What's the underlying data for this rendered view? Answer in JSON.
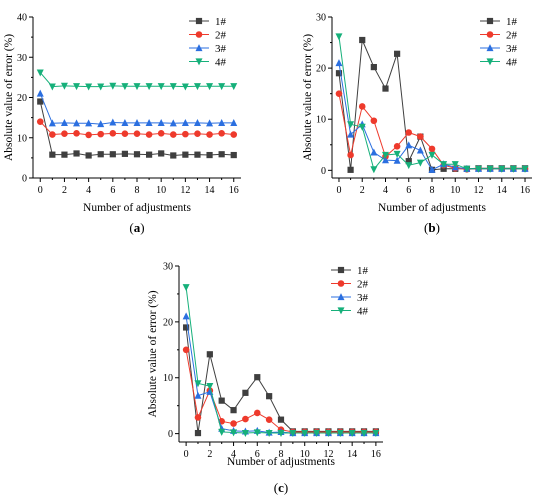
{
  "colors": {
    "1#": "#3f3f3f",
    "2#": "#ee3a2c",
    "3#": "#2b6fe0",
    "4#": "#16b07a"
  },
  "chart_data": [
    {
      "id": "a",
      "type": "line",
      "caption_open": "(",
      "caption_letter": "a",
      "caption_close": ")",
      "xlabel": "Number of adjustments",
      "ylabel": "Absolute value of error (%)",
      "xlim": [
        -0.6,
        16.6
      ],
      "ylim": [
        0,
        40
      ],
      "xticks": [
        0,
        2,
        4,
        6,
        8,
        10,
        12,
        14,
        16
      ],
      "yticks": [
        0,
        10,
        20,
        30,
        40
      ],
      "legend_position": "top-right",
      "x": [
        0,
        1,
        2,
        3,
        4,
        5,
        6,
        7,
        8,
        9,
        10,
        11,
        12,
        13,
        14,
        15,
        16
      ],
      "series": [
        {
          "name": "1#",
          "marker": "square",
          "values": [
            19,
            5.8,
            5.8,
            6.1,
            5.6,
            5.9,
            5.9,
            6,
            5.9,
            5.8,
            6.1,
            5.6,
            5.8,
            5.8,
            5.7,
            5.9,
            5.7
          ]
        },
        {
          "name": "2#",
          "marker": "circle",
          "values": [
            14,
            10.8,
            11,
            11.1,
            10.7,
            10.9,
            11.1,
            11,
            11,
            10.8,
            11.1,
            10.8,
            10.9,
            11,
            10.8,
            11.1,
            10.8
          ]
        },
        {
          "name": "3#",
          "marker": "triangle-up",
          "values": [
            21,
            13.6,
            13.7,
            13.6,
            13.6,
            13.4,
            13.8,
            13.7,
            13.7,
            13.7,
            13.7,
            13.6,
            13.7,
            13.7,
            13.6,
            13.7,
            13.7
          ]
        },
        {
          "name": "4#",
          "marker": "triangle-down",
          "values": [
            26.2,
            22.7,
            22.9,
            22.8,
            22.7,
            22.7,
            22.9,
            22.8,
            22.8,
            22.8,
            22.8,
            22.8,
            22.7,
            22.8,
            22.8,
            22.8,
            22.8
          ]
        }
      ]
    },
    {
      "id": "b",
      "type": "line",
      "caption_open": "(",
      "caption_letter": "b",
      "caption_close": ")",
      "xlabel": "Number of adjustments",
      "ylabel": "Absolute value of error (%)",
      "xlim": [
        -0.6,
        16.6
      ],
      "ylim": [
        -1.5,
        30
      ],
      "xticks": [
        0,
        2,
        4,
        6,
        8,
        10,
        12,
        14,
        16
      ],
      "yticks": [
        0,
        10,
        20,
        30
      ],
      "legend_position": "top-right",
      "x": [
        0,
        1,
        2,
        3,
        4,
        5,
        6,
        7,
        8,
        9,
        10,
        11,
        12,
        13,
        14,
        15,
        16
      ],
      "series": [
        {
          "name": "1#",
          "marker": "square",
          "values": [
            19,
            0.1,
            25.5,
            20.2,
            16,
            22.8,
            1.8,
            6.6,
            0.1,
            0.3,
            0.3,
            0.3,
            0.4,
            0.4,
            0.4,
            0.4,
            0.4
          ]
        },
        {
          "name": "2#",
          "marker": "circle",
          "values": [
            15,
            3,
            12.5,
            9.7,
            2.7,
            4.7,
            7.4,
            6.6,
            4.2,
            1,
            0.4,
            0.2,
            0.3,
            0.3,
            0.3,
            0.3,
            0.3
          ]
        },
        {
          "name": "3#",
          "marker": "triangle-up",
          "values": [
            21,
            7,
            9,
            3.5,
            2,
            1.9,
            4.9,
            3.9,
            0.1,
            1.2,
            0.6,
            0.3,
            0.3,
            0.3,
            0.3,
            0.3,
            0.3
          ]
        },
        {
          "name": "4#",
          "marker": "triangle-down",
          "values": [
            26.2,
            9,
            8.5,
            0.2,
            3,
            3.2,
            1,
            1.5,
            3,
            1.2,
            1.2,
            0.3,
            0.3,
            0.3,
            0.3,
            0.3,
            0.3
          ]
        }
      ]
    },
    {
      "id": "c",
      "type": "line",
      "caption_open": "(",
      "caption_letter": "c",
      "caption_close": ")",
      "xlabel": "Number of adjustments",
      "ylabel": "Absolute value of error (%)",
      "xlim": [
        -0.6,
        16.6
      ],
      "ylim": [
        -1.5,
        30
      ],
      "xticks": [
        0,
        2,
        4,
        6,
        8,
        10,
        12,
        14,
        16
      ],
      "yticks": [
        0,
        10,
        20,
        30
      ],
      "legend_position": "top-right",
      "x": [
        0,
        1,
        2,
        3,
        4,
        5,
        6,
        7,
        8,
        9,
        10,
        11,
        12,
        13,
        14,
        15,
        16
      ],
      "series": [
        {
          "name": "1#",
          "marker": "square",
          "values": [
            19,
            0.1,
            14.2,
            5.9,
            4.2,
            7.3,
            10.1,
            6.7,
            2.5,
            0.4,
            0.4,
            0.4,
            0.4,
            0.4,
            0.4,
            0.4,
            0.4
          ]
        },
        {
          "name": "2#",
          "marker": "circle",
          "values": [
            15,
            2.9,
            7.7,
            2.2,
            1.8,
            2.6,
            3.7,
            2.5,
            0.7,
            0.3,
            0.3,
            0.3,
            0.3,
            0.3,
            0.3,
            0.3,
            0.3
          ]
        },
        {
          "name": "3#",
          "marker": "triangle-up",
          "values": [
            21,
            6.8,
            7.5,
            0.9,
            0.5,
            0.4,
            0.5,
            0.2,
            0.3,
            0.1,
            0.1,
            0.1,
            0.1,
            0.1,
            0.1,
            0.1,
            0.1
          ]
        },
        {
          "name": "4#",
          "marker": "triangle-down",
          "values": [
            26.2,
            9,
            8.5,
            0.3,
            0.2,
            0.1,
            0.2,
            0.1,
            0.1,
            0.1,
            0.1,
            0.1,
            0.1,
            0.1,
            0.1,
            0.1,
            0.1
          ]
        }
      ]
    }
  ]
}
